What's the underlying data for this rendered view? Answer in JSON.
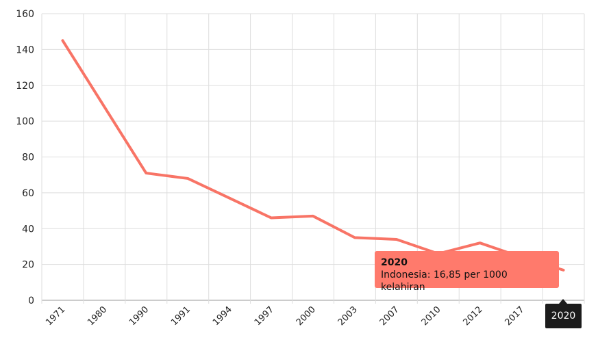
{
  "chart_data": {
    "type": "line",
    "categories": [
      "1971",
      "1980",
      "1990",
      "1991",
      "1994",
      "1997",
      "2000",
      "2003",
      "2007",
      "2010",
      "2012",
      "2017",
      "2020"
    ],
    "series": [
      {
        "name": "Indonesia",
        "values": [
          145,
          108,
          71,
          68,
          57,
          46,
          47,
          35,
          34,
          26,
          32,
          24,
          16.85
        ]
      }
    ],
    "y_ticks": [
      "0",
      "20",
      "40",
      "60",
      "80",
      "100",
      "120",
      "140",
      "160"
    ],
    "ylim": [
      0,
      160
    ],
    "grid": true,
    "line_color": "#f87466"
  },
  "tooltip": {
    "title": "2020",
    "text": "Indonesia: 16,85 per 1000 kelahiran"
  },
  "x_highlight": "2020"
}
